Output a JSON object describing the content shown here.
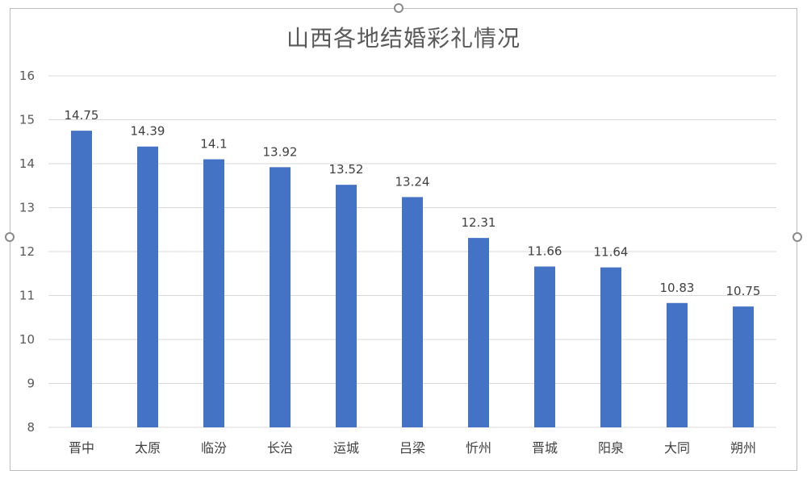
{
  "chart_data": {
    "type": "bar",
    "title": "山西各地结婚彩礼情况",
    "xlabel": "",
    "ylabel": "",
    "categories": [
      "晋中",
      "太原",
      "临汾",
      "长治",
      "运城",
      "吕梁",
      "忻州",
      "晋城",
      "阳泉",
      "大同",
      "朔州"
    ],
    "values": [
      14.75,
      14.39,
      14.1,
      13.92,
      13.52,
      13.24,
      12.31,
      11.66,
      11.64,
      10.83,
      10.75
    ],
    "data_labels": [
      "14.75",
      "14.39",
      "14.1",
      "13.92",
      "13.52",
      "13.24",
      "12.31",
      "11.66",
      "11.64",
      "10.83",
      "10.75"
    ],
    "ylim": [
      8,
      16
    ],
    "yticks": [
      "8",
      "9",
      "10",
      "11",
      "12",
      "13",
      "14",
      "15",
      "16"
    ],
    "grid": true,
    "legend": "none",
    "bar_color": "#4472C4",
    "grid_color": "#d9d9d9"
  }
}
